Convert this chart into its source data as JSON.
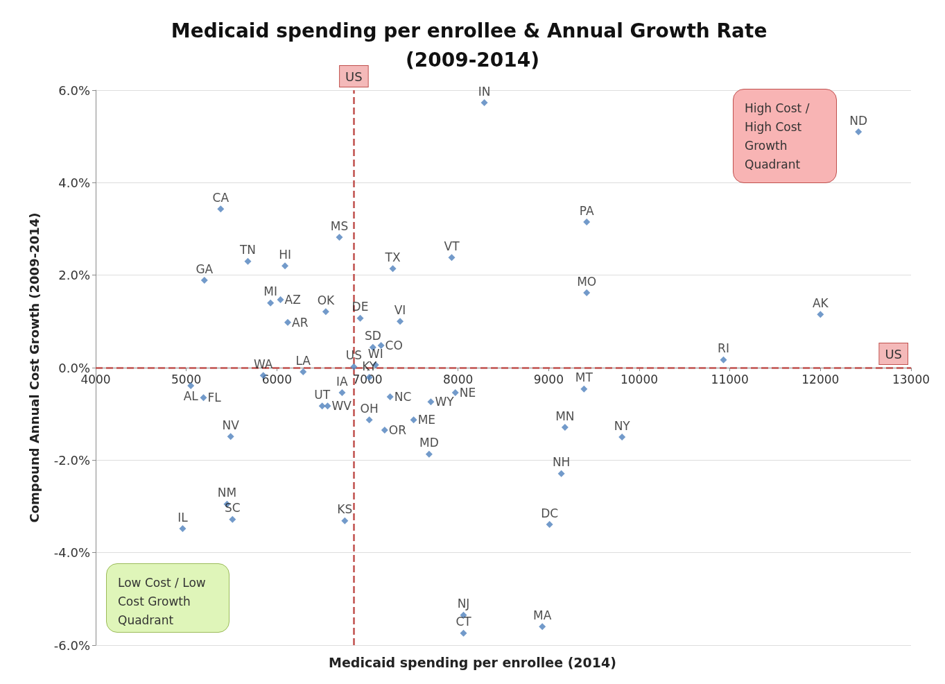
{
  "chart_data": {
    "type": "scatter",
    "title": "Medicaid spending per enrollee & Annual Growth Rate (2009-2014)",
    "xlabel": "Medicaid spending per enrollee (2014)",
    "ylabel": "Compound Annual Cost Growth (2009-2014)",
    "series": [
      {
        "color": "#4f81bd",
        "x": [
          8290,
          12420,
          5380,
          9420,
          6690,
          5680,
          6090,
          7280,
          7930,
          5200,
          9420,
          5930,
          6040,
          6120,
          6540,
          6920,
          7360,
          12000,
          7060,
          7150,
          6850,
          7090,
          7020,
          6290,
          5850,
          5050,
          5190,
          6720,
          6500,
          6560,
          7250,
          7700,
          7970,
          7020,
          7190,
          7510,
          7680,
          9390,
          9180,
          9810,
          9140,
          10930,
          5490,
          5450,
          5510,
          4960,
          6750,
          9010,
          8060,
          8060,
          8930
        ],
        "values": [
          5.73,
          5.1,
          3.43,
          3.15,
          2.82,
          2.3,
          2.2,
          2.14,
          2.38,
          1.89,
          1.62,
          1.4,
          1.47,
          0.98,
          1.21,
          1.07,
          1.0,
          1.15,
          0.44,
          0.48,
          0.02,
          0.06,
          -0.21,
          -0.09,
          -0.17,
          -0.39,
          -0.65,
          -0.54,
          -0.83,
          -0.83,
          -0.63,
          -0.74,
          -0.54,
          -1.13,
          -1.35,
          -1.13,
          -1.87,
          -0.46,
          -1.29,
          -1.5,
          -2.29,
          0.17,
          -1.49,
          -2.95,
          -3.28,
          -3.48,
          -3.31,
          -3.39,
          -5.35,
          -5.74,
          -5.6
        ],
        "value_labels": [
          "IN",
          "ND",
          "CA",
          "PA",
          "MS",
          "TN",
          "HI",
          "TX",
          "VT",
          "GA",
          "MO",
          "MI",
          "AZ",
          "AR",
          "OK",
          "DE",
          "VI",
          "AK",
          "SD",
          "CO",
          "US",
          "WI",
          "KY",
          "LA",
          "WA",
          "AL",
          "FL",
          "IA",
          "UT",
          "WV",
          "NC",
          "WY",
          "NE",
          "OH",
          "OR",
          "ME",
          "MD",
          "MT",
          "MN",
          "NY",
          "NH",
          "RI",
          "NV",
          "NM",
          "SC",
          "IL",
          "KS",
          "DC",
          "NJ",
          "CT",
          "MA"
        ]
      }
    ],
    "xlim": [
      4000,
      13000
    ],
    "xticks": [
      4000,
      5000,
      6000,
      7000,
      8000,
      9000,
      10000,
      11000,
      12000,
      13000
    ],
    "ylim": [
      -6,
      6
    ],
    "yticks": [
      {
        "value": -6,
        "label": "-6.0%"
      },
      {
        "value": -4,
        "label": "-4.0%"
      },
      {
        "value": -2,
        "label": "-2.0%"
      },
      {
        "value": 0,
        "label": "0.0%"
      },
      {
        "value": 2,
        "label": "2.0%"
      },
      {
        "value": 4,
        "label": "4.0%"
      },
      {
        "value": 6,
        "label": "6.0%"
      }
    ],
    "ref_lines": [
      {
        "axis": "x",
        "value": 6850,
        "label": "US",
        "color": "#c0504d",
        "line_style": "dashed"
      },
      {
        "axis": "y",
        "value": 0,
        "label": "US",
        "color": "#c0504d",
        "line_style": "dashed"
      }
    ],
    "annotations": [
      "High Cost / High Cost Growth Quadrant",
      "Low Cost / Low Cost Growth Quadrant"
    ],
    "grid": "y",
    "marker": "diamond"
  }
}
